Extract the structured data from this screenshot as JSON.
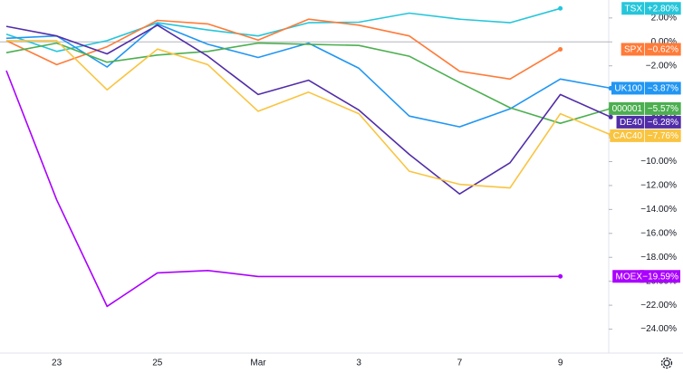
{
  "chart_data": {
    "type": "line",
    "categories": [
      null,
      "23",
      null,
      "25",
      null,
      "Mar",
      null,
      "3",
      null,
      "7",
      null,
      "9",
      null
    ],
    "ylim": [
      -26,
      3.5
    ],
    "yticks": [
      {
        "value": 2,
        "label": "2.00%"
      },
      {
        "value": 0,
        "label": "0.00%"
      },
      {
        "value": -2,
        "label": "−2.00%"
      },
      {
        "value": -4,
        "label": "−4.00%"
      },
      {
        "value": -6,
        "label": "−6.00%"
      },
      {
        "value": -8,
        "label": "−8.00%"
      },
      {
        "value": -10,
        "label": "−10.00%"
      },
      {
        "value": -12,
        "label": "−12.00%"
      },
      {
        "value": -14,
        "label": "−14.00%"
      },
      {
        "value": -16,
        "label": "−16.00%"
      },
      {
        "value": -18,
        "label": "−18.00%"
      },
      {
        "value": -20,
        "label": "−20.00%"
      },
      {
        "value": -22,
        "label": "−22.00%"
      },
      {
        "value": -24,
        "label": "−24.00%"
      }
    ],
    "baseline": 0,
    "series": [
      {
        "name": "TSX",
        "color": "#26c6da",
        "values": [
          0.65,
          -0.8,
          0.1,
          1.6,
          1.0,
          0.5,
          1.6,
          1.65,
          2.4,
          1.9,
          1.6,
          2.8,
          null
        ],
        "value_labels": [
          null,
          null,
          null,
          null,
          null,
          null,
          null,
          null,
          null,
          null,
          null,
          "+2.80%",
          null
        ]
      },
      {
        "name": "SPX",
        "color": "#ff7b39",
        "values": [
          0.1,
          -1.9,
          -0.4,
          1.8,
          1.5,
          0.15,
          1.9,
          1.4,
          0.5,
          -2.45,
          -3.1,
          -0.62,
          null
        ],
        "value_labels": [
          null,
          null,
          null,
          null,
          null,
          null,
          null,
          null,
          null,
          null,
          null,
          "−0.62%",
          null
        ]
      },
      {
        "name": "UK100",
        "color": "#2196f3",
        "values": [
          0.3,
          0.5,
          -2.1,
          1.5,
          -0.2,
          -1.3,
          -0.1,
          -2.2,
          -6.2,
          -7.1,
          -5.6,
          -3.1,
          -3.87
        ],
        "value_labels": [
          null,
          null,
          null,
          null,
          null,
          null,
          null,
          null,
          null,
          null,
          null,
          null,
          "−3.87%"
        ]
      },
      {
        "name": "000001",
        "color": "#4caf50",
        "values": [
          -0.9,
          -0.1,
          -1.7,
          -1.1,
          -0.8,
          -0.1,
          -0.2,
          -0.3,
          -1.2,
          -3.4,
          -5.5,
          -6.8,
          -5.57
        ],
        "value_labels": [
          null,
          null,
          null,
          null,
          null,
          null,
          null,
          null,
          null,
          null,
          null,
          null,
          "−5.57%"
        ]
      },
      {
        "name": "DE40",
        "color": "#512da8",
        "values": [
          1.3,
          0.5,
          -1.0,
          1.4,
          -1.2,
          -4.4,
          -3.2,
          -5.7,
          -9.4,
          -12.7,
          -10.1,
          -4.4,
          -6.28
        ],
        "value_labels": [
          null,
          null,
          null,
          null,
          null,
          null,
          null,
          null,
          null,
          null,
          null,
          null,
          "−6.28%"
        ]
      },
      {
        "name": "CAC40",
        "color": "#f9c440",
        "values": [
          0.1,
          0.1,
          -4.0,
          -0.6,
          -1.9,
          -5.8,
          -4.2,
          -6.0,
          -10.8,
          -11.9,
          -12.2,
          -6.0,
          -7.76
        ],
        "value_labels": [
          null,
          null,
          null,
          null,
          null,
          null,
          null,
          null,
          null,
          null,
          null,
          null,
          "−7.76%"
        ]
      },
      {
        "name": "MOEX",
        "color": "#aa00ff",
        "values": [
          -2.4,
          -13.2,
          -22.1,
          -19.3,
          -19.1,
          -19.6,
          -19.6,
          -19.6,
          -19.6,
          -19.6,
          -19.6,
          -19.59,
          null
        ],
        "value_labels": [
          null,
          null,
          null,
          null,
          null,
          null,
          null,
          null,
          null,
          null,
          null,
          "−19.59%",
          null
        ]
      }
    ]
  }
}
